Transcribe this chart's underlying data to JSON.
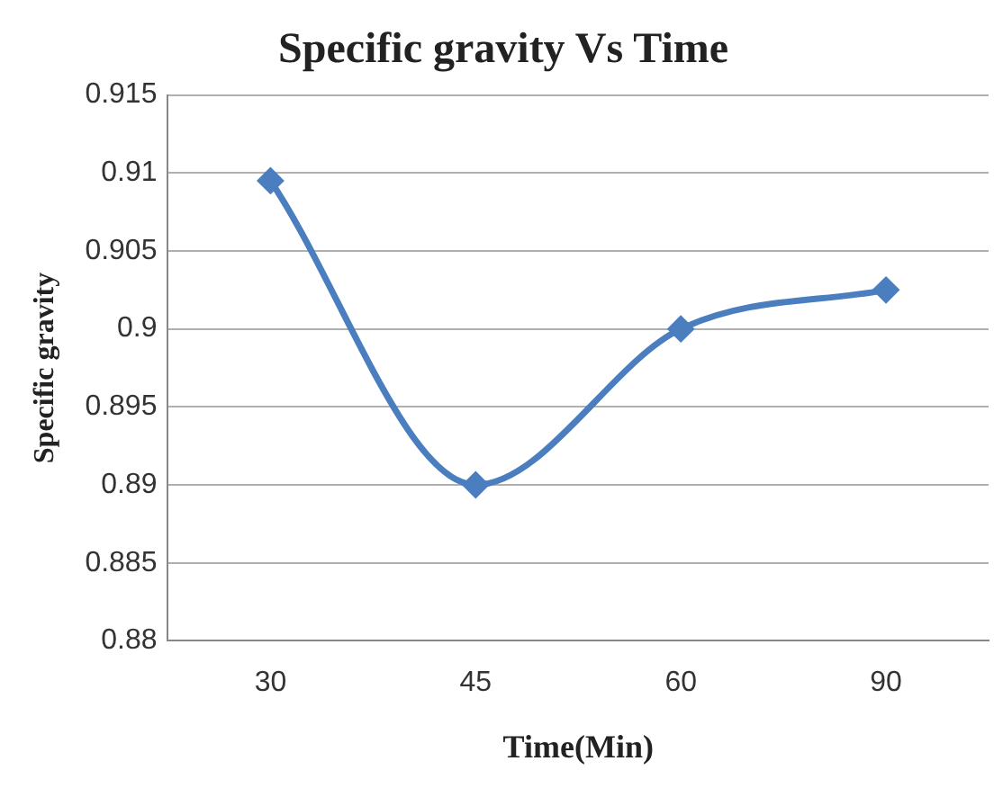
{
  "chart_data": {
    "type": "line",
    "title": "Specific gravity Vs Time",
    "xlabel": "Time(Min)",
    "ylabel": "Specific gravity",
    "categories": [
      "30",
      "45",
      "60",
      "90"
    ],
    "series": [
      {
        "color": "#4a7ebf",
        "values": [
          0.9095,
          0.89,
          0.9,
          0.9025
        ]
      }
    ],
    "ylim": [
      0.88,
      0.915
    ],
    "yticks": [
      0.88,
      0.885,
      0.89,
      0.895,
      0.9,
      0.905,
      0.91,
      0.915
    ],
    "grid": "y",
    "legend": false,
    "marker": "diamond",
    "line_style": "solid"
  }
}
